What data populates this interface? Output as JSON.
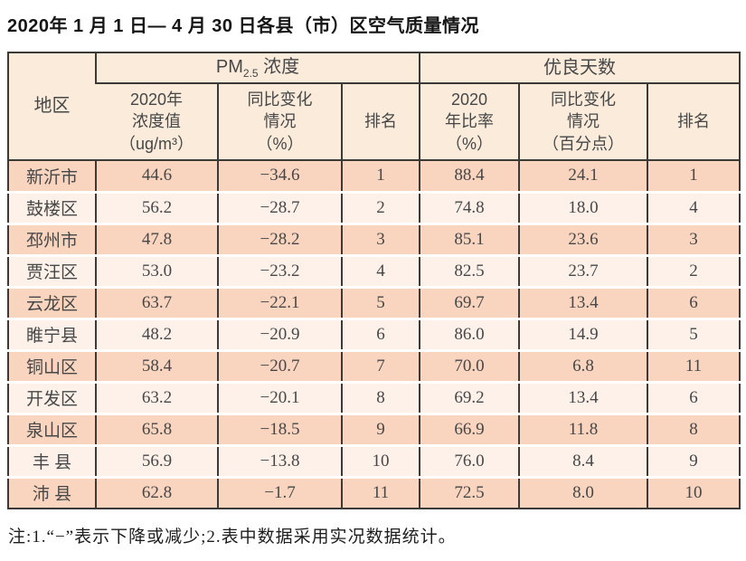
{
  "title": "2020年 1 月 1 日— 4 月 30 日各县（市）区空气质量情况",
  "table": {
    "region_header": "地区",
    "group_pm25": {
      "main": "PM",
      "sub": "2.5",
      "rest": " 浓度"
    },
    "group_good_days": "优良天数",
    "subheaders": {
      "pm_value": "2020年\n浓度值\n（ug/m³）",
      "pm_change": "同比变化\n情况\n（%）",
      "pm_rank": "排名",
      "good_ratio": "2020\n年比率\n（%）",
      "good_change": "同比变化\n情况\n（百分点）",
      "good_rank": "排名"
    },
    "rows": [
      [
        "新沂市",
        "44.6",
        "−34.6",
        "1",
        "88.4",
        "24.1",
        "1"
      ],
      [
        "鼓楼区",
        "56.2",
        "−28.7",
        "2",
        "74.8",
        "18.0",
        "4"
      ],
      [
        "邳州市",
        "47.8",
        "−28.2",
        "3",
        "85.1",
        "23.6",
        "3"
      ],
      [
        "贾汪区",
        "53.0",
        "−23.2",
        "4",
        "82.5",
        "23.7",
        "2"
      ],
      [
        "云龙区",
        "63.7",
        "−22.1",
        "5",
        "69.7",
        "13.4",
        "6"
      ],
      [
        "睢宁县",
        "48.2",
        "−20.9",
        "6",
        "86.0",
        "14.9",
        "5"
      ],
      [
        "铜山区",
        "58.4",
        "−20.7",
        "7",
        "70.0",
        "6.8",
        "11"
      ],
      [
        "开发区",
        "63.2",
        "−20.1",
        "8",
        "69.2",
        "13.4",
        "6"
      ],
      [
        "泉山区",
        "65.8",
        "−18.5",
        "9",
        "66.9",
        "11.8",
        "8"
      ],
      [
        "丰 县",
        "56.9",
        "−13.8",
        "10",
        "76.0",
        "8.4",
        "9"
      ],
      [
        "沛 县",
        "62.8",
        "−1.7",
        "11",
        "72.5",
        "8.0",
        "10"
      ]
    ]
  },
  "note": "注:1.“−”表示下降或减少;2.表中数据采用实况数据统计。",
  "colors": {
    "row_odd": "#f9d4be",
    "row_even": "#fdf1ea",
    "header_bg": "#faebdb",
    "border": "#3c3936",
    "text": "#474747"
  }
}
